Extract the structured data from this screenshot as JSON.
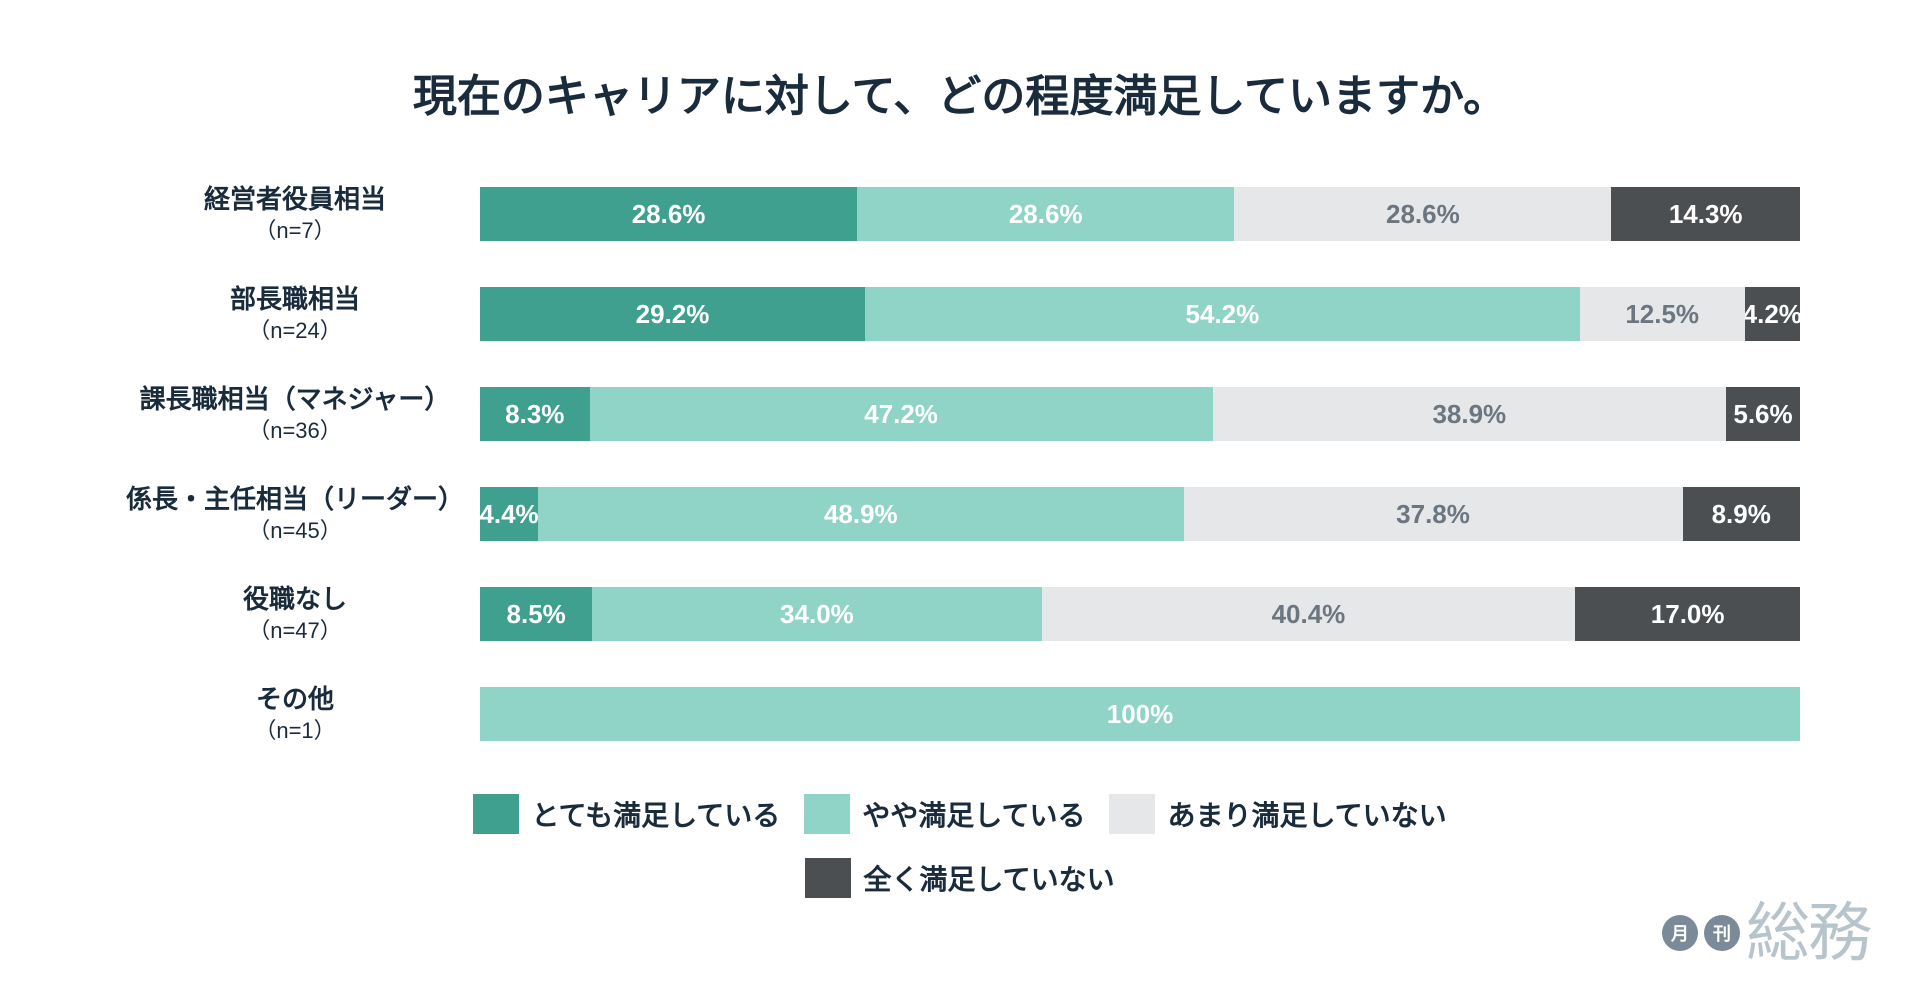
{
  "title": "現在のキャリアに対して、どの程度満足していますか。",
  "title_fontsize": 44,
  "colors": {
    "very_satisfied": "#3fa08f",
    "somewhat_satisfied": "#8fd4c6",
    "not_very_satisfied": "#e5e7e8",
    "not_satisfied": "#4b4f52",
    "title_text": "#1a2b3c",
    "background": "#ffffff"
  },
  "label_fontsize_main": 26,
  "label_fontsize_sub": 22,
  "segment_fontsize": 26,
  "legend_fontsize": 28,
  "segment_text_colors": {
    "very_satisfied": "#ffffff",
    "somewhat_satisfied": "#ffffff",
    "not_very_satisfied": "#6b7680",
    "not_satisfied": "#ffffff"
  },
  "legend": [
    {
      "key": "very_satisfied",
      "label": "とても満足している"
    },
    {
      "key": "somewhat_satisfied",
      "label": "やや満足している"
    },
    {
      "key": "not_very_satisfied",
      "label": "あまり満足していない"
    },
    {
      "key": "not_satisfied",
      "label": "全く満足していない"
    }
  ],
  "rows": [
    {
      "label": "経営者役員相当",
      "sub": "（n=7）",
      "segments": [
        {
          "key": "very_satisfied",
          "value": 28.6,
          "text": "28.6%"
        },
        {
          "key": "somewhat_satisfied",
          "value": 28.6,
          "text": "28.6%"
        },
        {
          "key": "not_very_satisfied",
          "value": 28.6,
          "text": "28.6%"
        },
        {
          "key": "not_satisfied",
          "value": 14.3,
          "text": "14.3%"
        }
      ]
    },
    {
      "label": "部長職相当",
      "sub": "（n=24）",
      "segments": [
        {
          "key": "very_satisfied",
          "value": 29.2,
          "text": "29.2%"
        },
        {
          "key": "somewhat_satisfied",
          "value": 54.2,
          "text": "54.2%"
        },
        {
          "key": "not_very_satisfied",
          "value": 12.5,
          "text": "12.5%"
        },
        {
          "key": "not_satisfied",
          "value": 4.2,
          "text": "4.2%"
        }
      ]
    },
    {
      "label": "課長職相当（マネジャー）",
      "sub": "（n=36）",
      "segments": [
        {
          "key": "very_satisfied",
          "value": 8.3,
          "text": "8.3%"
        },
        {
          "key": "somewhat_satisfied",
          "value": 47.2,
          "text": "47.2%"
        },
        {
          "key": "not_very_satisfied",
          "value": 38.9,
          "text": "38.9%"
        },
        {
          "key": "not_satisfied",
          "value": 5.6,
          "text": "5.6%"
        }
      ]
    },
    {
      "label": "係長・主任相当（リーダー）",
      "sub": "（n=45）",
      "segments": [
        {
          "key": "very_satisfied",
          "value": 4.4,
          "text": "4.4%"
        },
        {
          "key": "somewhat_satisfied",
          "value": 48.9,
          "text": "48.9%"
        },
        {
          "key": "not_very_satisfied",
          "value": 37.8,
          "text": "37.8%"
        },
        {
          "key": "not_satisfied",
          "value": 8.9,
          "text": "8.9%"
        }
      ]
    },
    {
      "label": "役職なし",
      "sub": "（n=47）",
      "segments": [
        {
          "key": "very_satisfied",
          "value": 8.5,
          "text": "8.5%"
        },
        {
          "key": "somewhat_satisfied",
          "value": 34.0,
          "text": "34.0%"
        },
        {
          "key": "not_very_satisfied",
          "value": 40.4,
          "text": "40.4%"
        },
        {
          "key": "not_satisfied",
          "value": 17.0,
          "text": "17.0%"
        }
      ]
    },
    {
      "label": "その他",
      "sub": "（n=1）",
      "segments": [
        {
          "key": "somewhat_satisfied",
          "value": 100,
          "text": "100%"
        }
      ]
    }
  ],
  "logo": {
    "circle1": "月",
    "circle2": "刊",
    "text": "総務"
  }
}
